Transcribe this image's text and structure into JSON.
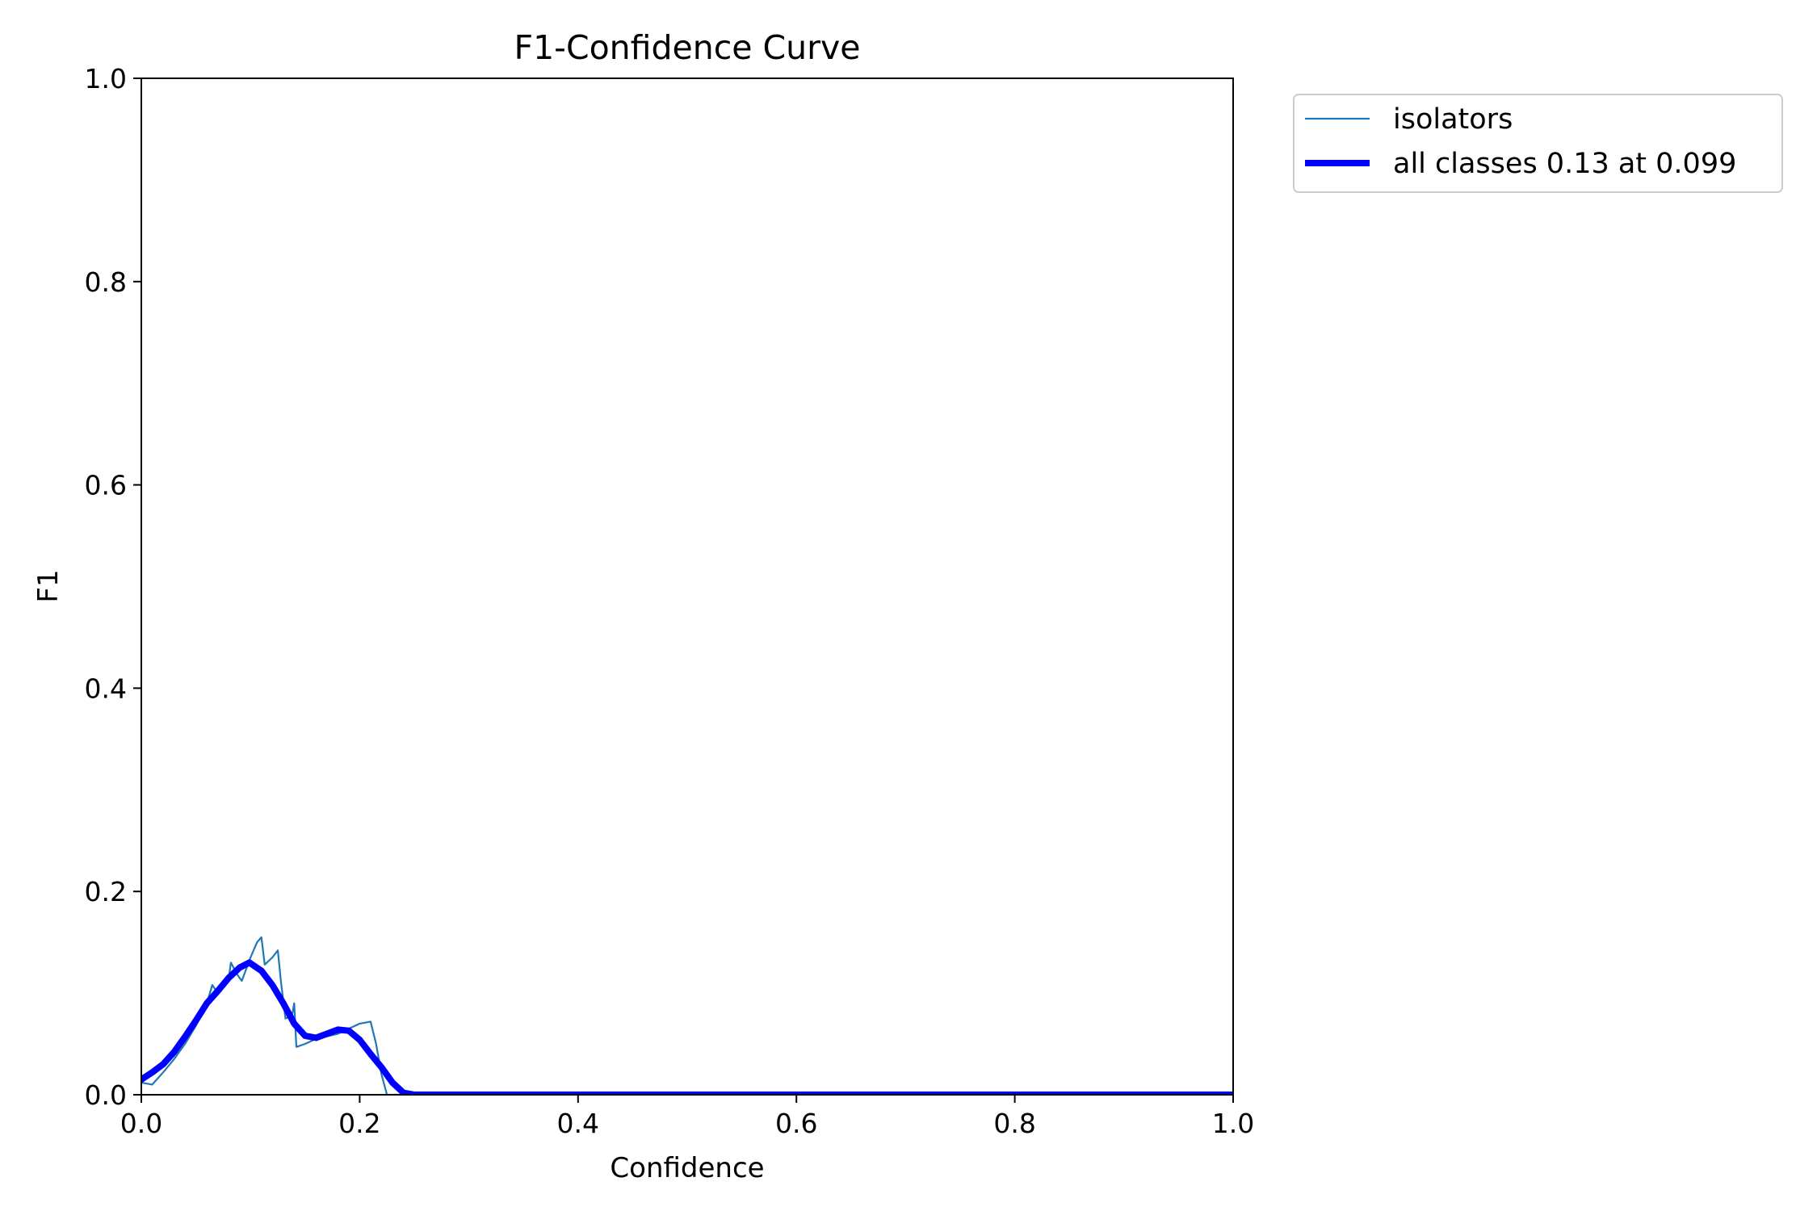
{
  "chart_data": {
    "type": "line",
    "title": "F1-Confidence Curve",
    "xlabel": "Confidence",
    "ylabel": "F1",
    "xlim": [
      0.0,
      1.0
    ],
    "ylim": [
      0.0,
      1.0
    ],
    "x_ticks": [
      "0.0",
      "0.2",
      "0.4",
      "0.6",
      "0.8",
      "1.0"
    ],
    "y_ticks": [
      "0.0",
      "0.2",
      "0.4",
      "0.6",
      "0.8",
      "1.0"
    ],
    "grid": false,
    "legend": {
      "placement": "outside-top-right",
      "entries": [
        "isolators",
        "all classes 0.13 at 0.099"
      ]
    },
    "series": [
      {
        "name": "isolators",
        "color": "#1f77b4",
        "style": "thin",
        "points": [
          [
            0.0,
            0.012
          ],
          [
            0.01,
            0.01
          ],
          [
            0.02,
            0.022
          ],
          [
            0.03,
            0.035
          ],
          [
            0.04,
            0.05
          ],
          [
            0.05,
            0.068
          ],
          [
            0.06,
            0.09
          ],
          [
            0.065,
            0.108
          ],
          [
            0.07,
            0.1
          ],
          [
            0.08,
            0.114
          ],
          [
            0.082,
            0.13
          ],
          [
            0.088,
            0.118
          ],
          [
            0.092,
            0.112
          ],
          [
            0.1,
            0.135
          ],
          [
            0.106,
            0.15
          ],
          [
            0.11,
            0.155
          ],
          [
            0.113,
            0.128
          ],
          [
            0.12,
            0.135
          ],
          [
            0.125,
            0.142
          ],
          [
            0.128,
            0.11
          ],
          [
            0.132,
            0.075
          ],
          [
            0.138,
            0.078
          ],
          [
            0.14,
            0.09
          ],
          [
            0.142,
            0.047
          ],
          [
            0.15,
            0.05
          ],
          [
            0.16,
            0.055
          ],
          [
            0.18,
            0.06
          ],
          [
            0.2,
            0.07
          ],
          [
            0.21,
            0.072
          ],
          [
            0.215,
            0.05
          ],
          [
            0.22,
            0.02
          ],
          [
            0.225,
            0.0
          ],
          [
            0.3,
            0.0
          ],
          [
            0.5,
            0.0
          ],
          [
            0.7,
            0.0
          ],
          [
            0.9,
            0.0
          ],
          [
            1.0,
            0.0
          ]
        ]
      },
      {
        "name": "all classes 0.13 at 0.099",
        "color": "#0000ff",
        "style": "thick",
        "points": [
          [
            0.0,
            0.015
          ],
          [
            0.01,
            0.022
          ],
          [
            0.02,
            0.03
          ],
          [
            0.03,
            0.042
          ],
          [
            0.04,
            0.057
          ],
          [
            0.05,
            0.073
          ],
          [
            0.06,
            0.09
          ],
          [
            0.07,
            0.102
          ],
          [
            0.08,
            0.115
          ],
          [
            0.09,
            0.125
          ],
          [
            0.099,
            0.13
          ],
          [
            0.11,
            0.122
          ],
          [
            0.12,
            0.108
          ],
          [
            0.13,
            0.09
          ],
          [
            0.14,
            0.07
          ],
          [
            0.15,
            0.058
          ],
          [
            0.16,
            0.056
          ],
          [
            0.17,
            0.06
          ],
          [
            0.18,
            0.064
          ],
          [
            0.19,
            0.063
          ],
          [
            0.2,
            0.054
          ],
          [
            0.21,
            0.04
          ],
          [
            0.22,
            0.027
          ],
          [
            0.23,
            0.012
          ],
          [
            0.24,
            0.002
          ],
          [
            0.25,
            0.0
          ],
          [
            0.4,
            0.0
          ],
          [
            0.6,
            0.0
          ],
          [
            0.8,
            0.0
          ],
          [
            1.0,
            0.0
          ]
        ]
      }
    ]
  }
}
